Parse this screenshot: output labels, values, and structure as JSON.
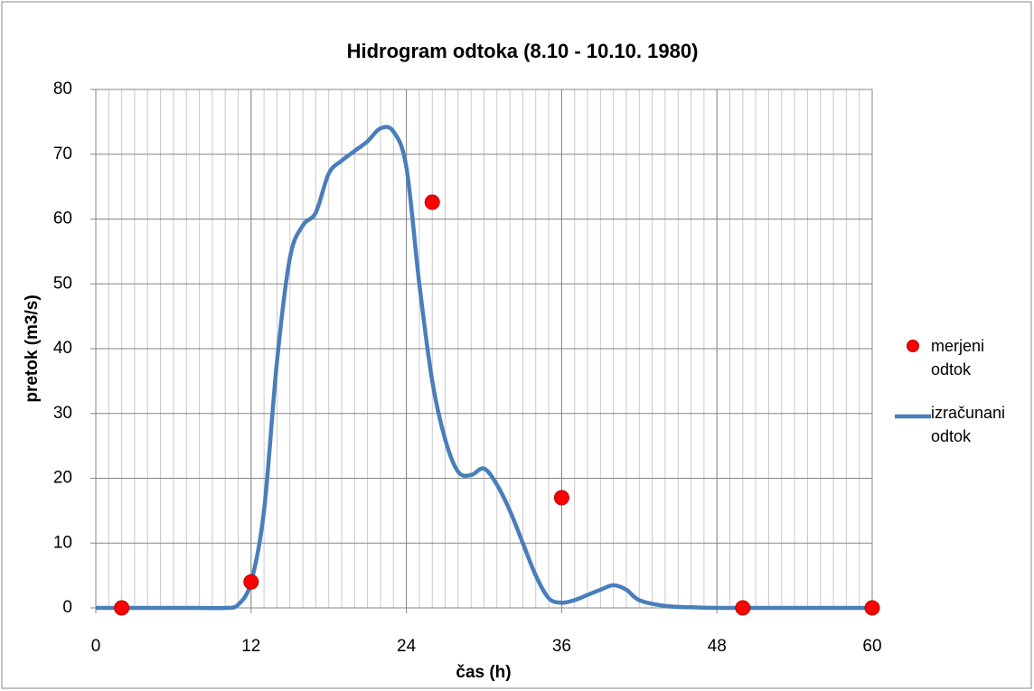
{
  "chart_data": {
    "type": "line_scatter",
    "title": "Hidrogram odtoka (8.10 - 10.10. 1980)",
    "x_label": "čas (h)",
    "y_label": "pretok (m3/s)",
    "xlim": [
      0,
      60
    ],
    "ylim": [
      0,
      80
    ],
    "xticks": [
      0,
      12,
      24,
      36,
      48,
      60
    ],
    "yticks": [
      0,
      10,
      20,
      30,
      40,
      50,
      60,
      70,
      80
    ],
    "x_minor_ticks": [
      0,
      1,
      2,
      3,
      4,
      5,
      6,
      7,
      8,
      9,
      10,
      11,
      12,
      13,
      14,
      15,
      16,
      17,
      18,
      19,
      20,
      21,
      22,
      23,
      24,
      25,
      26,
      27,
      28,
      29,
      30,
      31,
      32,
      33,
      34,
      35,
      36,
      37,
      38,
      39,
      40,
      41,
      42,
      43,
      44,
      45,
      46,
      47,
      48,
      49,
      50,
      51,
      52,
      53,
      54,
      55,
      56,
      57,
      58,
      59,
      60
    ],
    "grid": true,
    "legend": "right",
    "series": [
      {
        "name": "merjeni odtok",
        "kind": "scatter",
        "color": "#ff0000",
        "x": [
          2,
          12,
          26,
          36,
          50,
          60
        ],
        "values": [
          0,
          4,
          62.6,
          17,
          0,
          0
        ]
      },
      {
        "name": "izračunani odtok",
        "kind": "line",
        "color": "#4a7ebb",
        "x": [
          0,
          2,
          4,
          6,
          8,
          10,
          11,
          12,
          13,
          14,
          15,
          16,
          17,
          18,
          19,
          20,
          21,
          22,
          23,
          24,
          25,
          26,
          27,
          28,
          29,
          30,
          31,
          32,
          33,
          34,
          35,
          36,
          37,
          38,
          39,
          40,
          41,
          42,
          44,
          46,
          48,
          50,
          52,
          54,
          56,
          58,
          60
        ],
        "values": [
          0,
          0,
          0,
          0,
          0,
          0,
          0.5,
          4,
          15,
          38,
          54,
          59,
          61,
          67,
          69,
          70.5,
          72,
          74,
          73.5,
          68,
          50,
          35,
          26,
          21,
          20.5,
          21.5,
          19,
          15,
          10,
          5,
          1.5,
          0.8,
          1.2,
          2,
          2.8,
          3.5,
          2.8,
          1.2,
          0.3,
          0.1,
          0,
          0,
          0,
          0,
          0,
          0,
          0
        ]
      }
    ]
  }
}
